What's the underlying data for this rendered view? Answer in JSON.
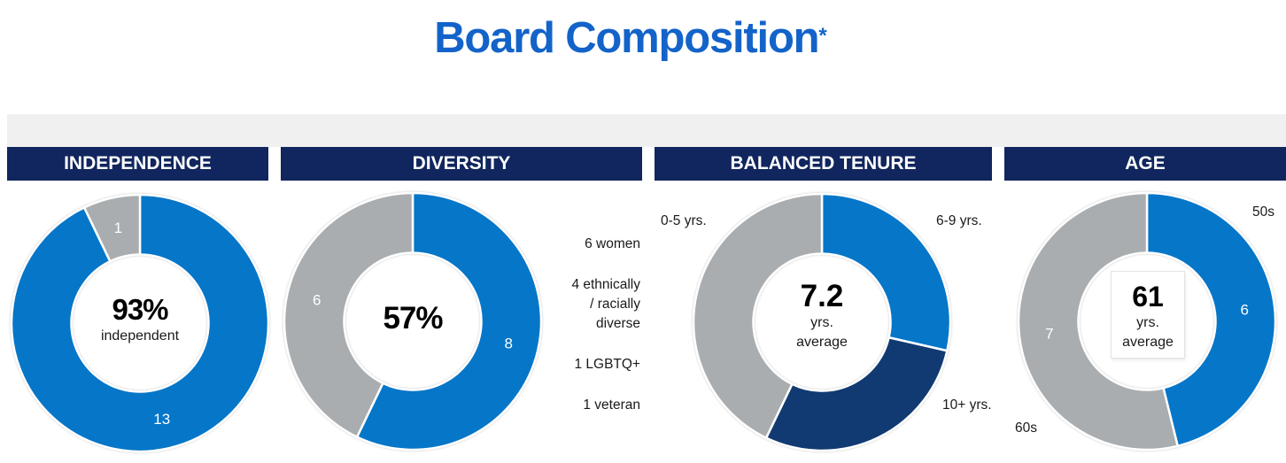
{
  "title": {
    "text": "Board Composition",
    "asterisk": "*"
  },
  "colors": {
    "blue": "#0676C8",
    "navy": "#11265E",
    "navy_slice": "#113A72",
    "gray": "#A9ADB0",
    "band": "#F0F0F1",
    "title_blue": "#1363C9",
    "white": "#FFFFFF"
  },
  "panels": [
    {
      "header": "INDEPENDENCE"
    },
    {
      "header": "DIVERSITY"
    },
    {
      "header": "BALANCED TENURE"
    },
    {
      "header": "AGE"
    }
  ],
  "chart_data": [
    {
      "type": "donut",
      "id": "independence",
      "title": "INDEPENDENCE",
      "start_angle_deg": 0,
      "direction": "clockwise",
      "slices": [
        {
          "name": "independent",
          "value": 13,
          "label": "13",
          "color": "blue"
        },
        {
          "name": "not-independent",
          "value": 1,
          "label": "1",
          "color": "gray"
        }
      ],
      "center": {
        "big": "93%",
        "small1": "independent"
      }
    },
    {
      "type": "donut",
      "id": "diversity",
      "title": "DIVERSITY",
      "start_angle_deg": 0,
      "direction": "clockwise",
      "slices": [
        {
          "name": "diverse",
          "value": 8,
          "label": "8",
          "color": "blue"
        },
        {
          "name": "not-diverse",
          "value": 6,
          "label": "6",
          "color": "gray"
        }
      ],
      "center": {
        "big": "57%"
      },
      "legend": [
        {
          "lines": [
            "6 women"
          ]
        },
        {
          "lines": [
            "4 ethnically",
            "/ racially",
            "diverse"
          ]
        },
        {
          "lines": [
            "1 LGBTQ+"
          ]
        },
        {
          "lines": [
            "1 veteran"
          ]
        }
      ]
    },
    {
      "type": "donut",
      "id": "balanced-tenure",
      "title": "BALANCED TENURE",
      "start_angle_deg": 0,
      "direction": "clockwise",
      "slices": [
        {
          "name": "6-9-yrs",
          "value": 4,
          "color": "blue",
          "outside_label": "6-9 yrs."
        },
        {
          "name": "10-plus-yrs",
          "value": 4,
          "color": "navy_slice",
          "outside_label": "10+ yrs."
        },
        {
          "name": "0-5-yrs",
          "value": 6,
          "color": "gray",
          "outside_label": "0-5 yrs."
        }
      ],
      "center": {
        "big": "7.2",
        "small1": "yrs.",
        "small2": "average"
      }
    },
    {
      "type": "donut",
      "id": "age",
      "title": "AGE",
      "start_angle_deg": 0,
      "direction": "clockwise",
      "slices": [
        {
          "name": "50s",
          "value": 6,
          "label": "6",
          "color": "blue",
          "outside_label": "50s"
        },
        {
          "name": "60s",
          "value": 7,
          "label": "7",
          "color": "gray",
          "outside_label": "60s"
        }
      ],
      "center": {
        "big": "61",
        "small1": "yrs.",
        "small2": "average"
      }
    }
  ]
}
